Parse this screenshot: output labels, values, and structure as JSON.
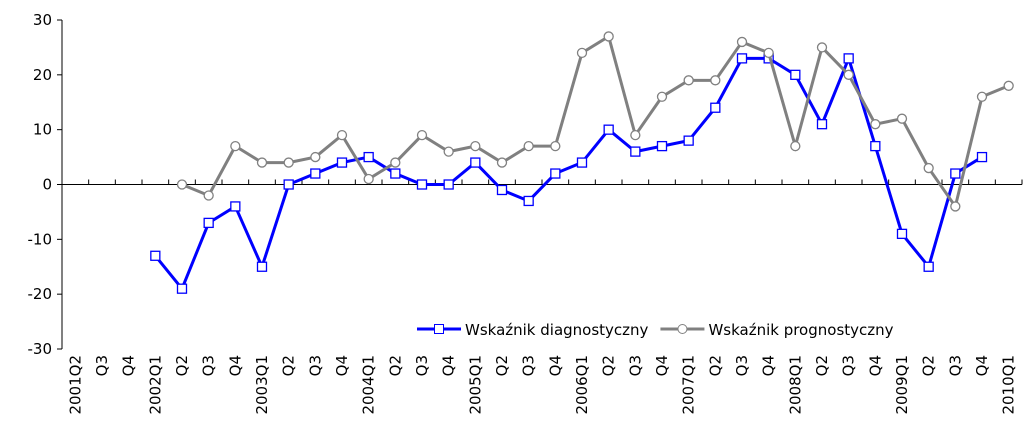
{
  "chart_data": {
    "type": "line",
    "categories": [
      "2001Q2",
      "Q3",
      "Q4",
      "2002Q1",
      "Q2",
      "Q3",
      "Q4",
      "2003Q1",
      "Q2",
      "Q3",
      "Q4",
      "2004Q1",
      "Q2",
      "Q3",
      "Q4",
      "2005Q1",
      "Q2",
      "Q3",
      "Q4",
      "2006Q1",
      "Q2",
      "Q3",
      "Q4",
      "2007Q1",
      "Q2",
      "Q3",
      "Q4",
      "2008Q1",
      "Q2",
      "Q3",
      "Q4",
      "2009Q1",
      "Q2",
      "Q3",
      "Q4",
      "2010Q1"
    ],
    "series": [
      {
        "name": "Wskaźnik diagnostyczny",
        "color": "#0000ff",
        "marker": "square",
        "values": [
          null,
          null,
          null,
          -13,
          -19,
          -7,
          -4,
          -15,
          0,
          2,
          4,
          5,
          2,
          0,
          0,
          4,
          -1,
          -3,
          2,
          4,
          10,
          6,
          7,
          8,
          14,
          23,
          23,
          20,
          11,
          23,
          7,
          -9,
          -15,
          2,
          5,
          null
        ]
      },
      {
        "name": "Wskaźnik prognostyczny",
        "color": "#808080",
        "marker": "circle",
        "values": [
          null,
          null,
          null,
          null,
          0,
          -2,
          7,
          4,
          4,
          5,
          9,
          1,
          4,
          9,
          6,
          7,
          4,
          7,
          7,
          24,
          27,
          9,
          16,
          19,
          19,
          26,
          24,
          7,
          25,
          20,
          11,
          12,
          3,
          -4,
          16,
          18
        ]
      }
    ],
    "ylim": [
      -30,
      30
    ],
    "yticks": [
      -30,
      -20,
      -10,
      0,
      10,
      20,
      30
    ],
    "grid": false,
    "legend": "lower right"
  }
}
